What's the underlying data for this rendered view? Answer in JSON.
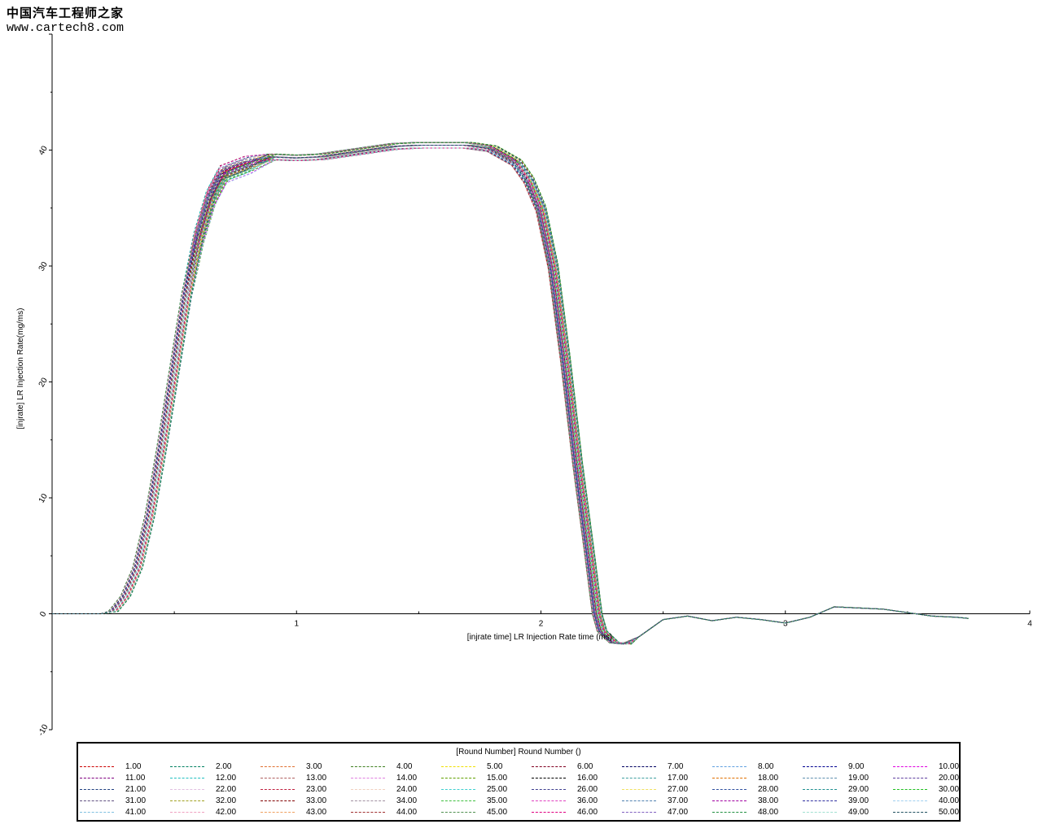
{
  "watermark": {
    "brand": "中国汽车工程师之家",
    "url": "www.cartech8.com"
  },
  "chart_data": {
    "type": "line",
    "xlabel": "[injrate time] LR Injection Rate time (ms)",
    "ylabel": "[injrate] LR Injection Rate(mg/ms)",
    "xlim": [
      0,
      4
    ],
    "ylim": [
      -10,
      50
    ],
    "xticks": [
      "1",
      "2",
      "3",
      "4"
    ],
    "yticks": [
      "-10",
      "0",
      "10",
      "20",
      "30",
      "40"
    ],
    "grid": false,
    "legend_title": "[Round Number] Round Number ()",
    "legend_position": "bottom",
    "base_curve": [
      [
        0.0,
        0.0
      ],
      [
        0.1,
        0.0
      ],
      [
        0.2,
        0.0
      ],
      [
        0.25,
        0.2
      ],
      [
        0.3,
        1.5
      ],
      [
        0.35,
        4.0
      ],
      [
        0.4,
        8.5
      ],
      [
        0.45,
        14.5
      ],
      [
        0.5,
        21.0
      ],
      [
        0.55,
        27.5
      ],
      [
        0.6,
        33.0
      ],
      [
        0.65,
        36.5
      ],
      [
        0.7,
        38.5
      ],
      [
        0.8,
        39.3
      ],
      [
        0.9,
        39.5
      ],
      [
        1.0,
        39.4
      ],
      [
        1.1,
        39.5
      ],
      [
        1.2,
        39.8
      ],
      [
        1.3,
        40.1
      ],
      [
        1.4,
        40.4
      ],
      [
        1.5,
        40.5
      ],
      [
        1.6,
        40.5
      ],
      [
        1.7,
        40.5
      ],
      [
        1.8,
        40.2
      ],
      [
        1.9,
        39.0
      ],
      [
        1.95,
        37.5
      ],
      [
        2.0,
        35.0
      ],
      [
        2.05,
        30.0
      ],
      [
        2.1,
        22.0
      ],
      [
        2.15,
        13.0
      ],
      [
        2.2,
        5.0
      ],
      [
        2.23,
        0.0
      ],
      [
        2.25,
        -1.5
      ],
      [
        2.3,
        -2.5
      ],
      [
        2.35,
        -2.6
      ],
      [
        2.4,
        -2.0
      ],
      [
        2.5,
        -0.5
      ],
      [
        2.6,
        -0.2
      ],
      [
        2.7,
        -0.6
      ],
      [
        2.8,
        -0.3
      ],
      [
        2.9,
        -0.5
      ],
      [
        3.0,
        -0.8
      ],
      [
        3.1,
        -0.3
      ],
      [
        3.2,
        0.6
      ],
      [
        3.3,
        0.5
      ],
      [
        3.4,
        0.4
      ],
      [
        3.5,
        0.1
      ],
      [
        3.6,
        -0.2
      ],
      [
        3.7,
        -0.3
      ],
      [
        3.75,
        -0.4
      ]
    ],
    "series": [
      {
        "name": "1.00",
        "color": "#cc0000"
      },
      {
        "name": "2.00",
        "color": "#008060"
      },
      {
        "name": "3.00",
        "color": "#e07030"
      },
      {
        "name": "4.00",
        "color": "#408020"
      },
      {
        "name": "5.00",
        "color": "#f0e000"
      },
      {
        "name": "6.00",
        "color": "#800020"
      },
      {
        "name": "7.00",
        "color": "#000060"
      },
      {
        "name": "8.00",
        "color": "#60a0e0"
      },
      {
        "name": "9.00",
        "color": "#000090"
      },
      {
        "name": "10.00",
        "color": "#e000e0"
      },
      {
        "name": "11.00",
        "color": "#800080"
      },
      {
        "name": "12.00",
        "color": "#20c0c0"
      },
      {
        "name": "13.00",
        "color": "#b06060"
      },
      {
        "name": "14.00",
        "color": "#e080e0"
      },
      {
        "name": "15.00",
        "color": "#60a000"
      },
      {
        "name": "16.00",
        "color": "#000000"
      },
      {
        "name": "17.00",
        "color": "#40a0a0"
      },
      {
        "name": "18.00",
        "color": "#e07000"
      },
      {
        "name": "19.00",
        "color": "#6090b0"
      },
      {
        "name": "20.00",
        "color": "#6040a0"
      },
      {
        "name": "21.00",
        "color": "#204080"
      },
      {
        "name": "22.00",
        "color": "#e0c0e0"
      },
      {
        "name": "23.00",
        "color": "#c02040"
      },
      {
        "name": "24.00",
        "color": "#f0d0c0"
      },
      {
        "name": "25.00",
        "color": "#40d0d0"
      },
      {
        "name": "26.00",
        "color": "#404090"
      },
      {
        "name": "27.00",
        "color": "#f0e060"
      },
      {
        "name": "28.00",
        "color": "#3050a0"
      },
      {
        "name": "29.00",
        "color": "#209090"
      },
      {
        "name": "30.00",
        "color": "#20c020"
      },
      {
        "name": "31.00",
        "color": "#605080"
      },
      {
        "name": "32.00",
        "color": "#a0a020"
      },
      {
        "name": "33.00",
        "color": "#800000"
      },
      {
        "name": "34.00",
        "color": "#a090a0"
      },
      {
        "name": "35.00",
        "color": "#40c040"
      },
      {
        "name": "36.00",
        "color": "#e040c0"
      },
      {
        "name": "37.00",
        "color": "#5080b0"
      },
      {
        "name": "38.00",
        "color": "#a000a0"
      },
      {
        "name": "39.00",
        "color": "#3030a0"
      },
      {
        "name": "40.00",
        "color": "#a0d0f0"
      },
      {
        "name": "41.00",
        "color": "#80c0e0"
      },
      {
        "name": "42.00",
        "color": "#f0a0c0"
      },
      {
        "name": "43.00",
        "color": "#f0a060"
      },
      {
        "name": "44.00",
        "color": "#a03030"
      },
      {
        "name": "45.00",
        "color": "#509050"
      },
      {
        "name": "46.00",
        "color": "#e00080"
      },
      {
        "name": "47.00",
        "color": "#8060c0"
      },
      {
        "name": "48.00",
        "color": "#209040"
      },
      {
        "name": "49.00",
        "color": "#a0e0d0"
      },
      {
        "name": "50.00",
        "color": "#205060"
      }
    ]
  }
}
